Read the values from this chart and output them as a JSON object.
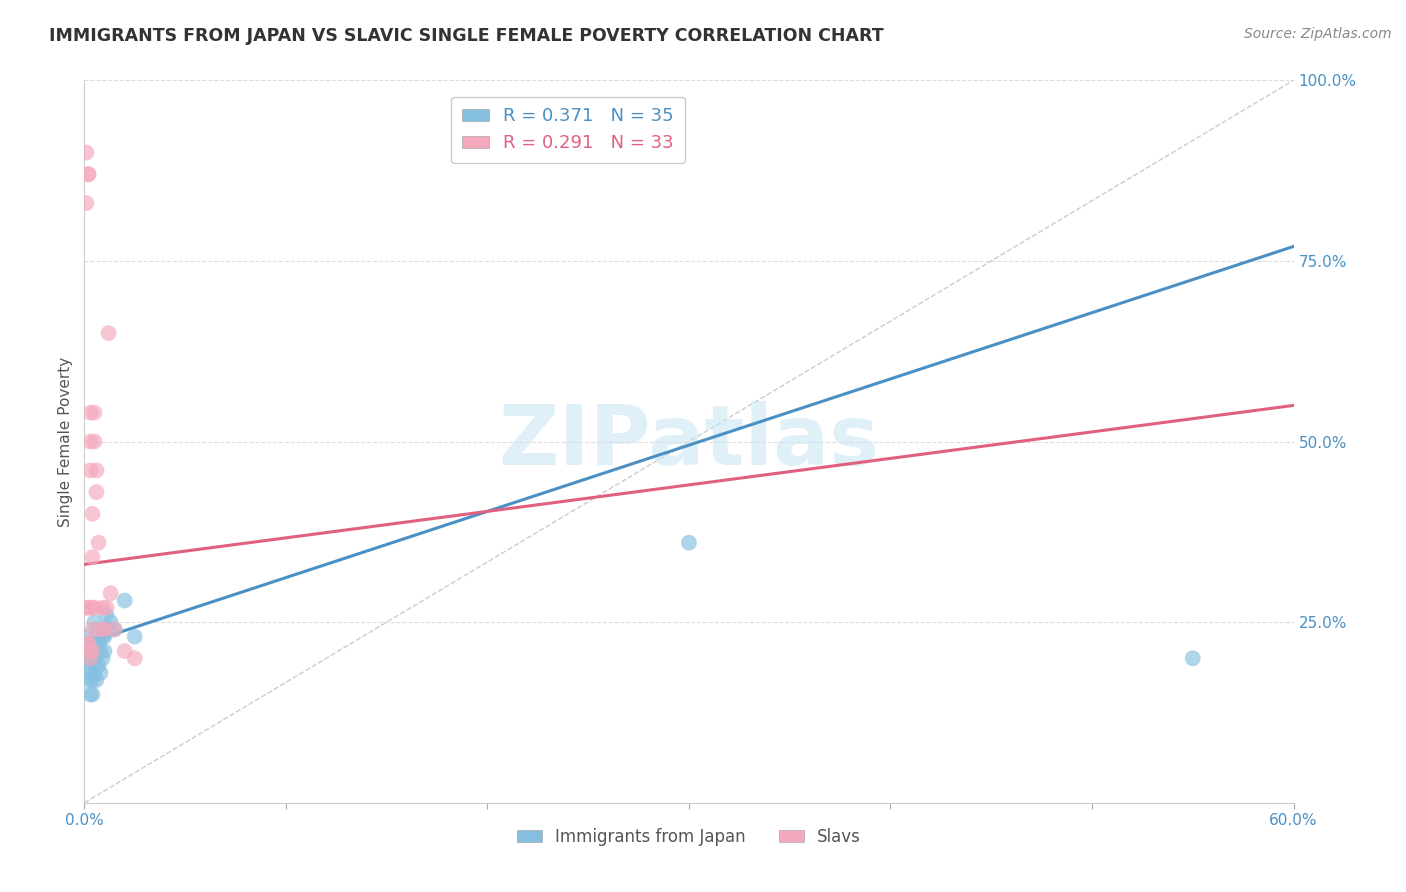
{
  "title": "IMMIGRANTS FROM JAPAN VS SLAVIC SINGLE FEMALE POVERTY CORRELATION CHART",
  "source": "Source: ZipAtlas.com",
  "xlabel_label": "Immigrants from Japan",
  "ylabel_label": "Single Female Poverty",
  "legend_label1": "Immigrants from Japan",
  "legend_label2": "Slavs",
  "R1": 0.371,
  "N1": 35,
  "R2": 0.291,
  "N2": 33,
  "color_blue": "#85bfe0",
  "color_pink": "#f4a8bb",
  "color_blue_line": "#4a90c4",
  "color_pink_line": "#e06080",
  "xlim": [
    0.0,
    0.6
  ],
  "ylim": [
    0.0,
    1.0
  ],
  "xtick_positions": [
    0.0,
    0.1,
    0.2,
    0.3,
    0.4,
    0.5,
    0.6
  ],
  "xtick_labels_show": [
    "0.0%",
    "",
    "",
    "",
    "",
    "",
    "60.0%"
  ],
  "yticks_right": [
    0.25,
    0.5,
    0.75,
    1.0
  ],
  "ytick_labels_right": [
    "25.0%",
    "50.0%",
    "75.0%",
    "100.0%"
  ],
  "watermark": "ZIPatlas",
  "japan_x": [
    0.001,
    0.001,
    0.002,
    0.002,
    0.002,
    0.003,
    0.003,
    0.003,
    0.003,
    0.004,
    0.004,
    0.004,
    0.005,
    0.005,
    0.005,
    0.005,
    0.006,
    0.006,
    0.006,
    0.007,
    0.007,
    0.008,
    0.008,
    0.009,
    0.009,
    0.01,
    0.01,
    0.011,
    0.012,
    0.013,
    0.015,
    0.02,
    0.025,
    0.3,
    0.55
  ],
  "japan_y": [
    0.23,
    0.2,
    0.22,
    0.19,
    0.17,
    0.22,
    0.2,
    0.18,
    0.15,
    0.17,
    0.15,
    0.22,
    0.25,
    0.22,
    0.2,
    0.18,
    0.24,
    0.21,
    0.17,
    0.22,
    0.19,
    0.21,
    0.18,
    0.23,
    0.2,
    0.21,
    0.23,
    0.26,
    0.24,
    0.25,
    0.24,
    0.28,
    0.23,
    0.36,
    0.2
  ],
  "slavs_x": [
    0.001,
    0.001,
    0.001,
    0.002,
    0.002,
    0.002,
    0.002,
    0.003,
    0.003,
    0.003,
    0.004,
    0.004,
    0.004,
    0.005,
    0.005,
    0.006,
    0.006,
    0.007,
    0.008,
    0.009,
    0.01,
    0.011,
    0.012,
    0.013,
    0.015,
    0.02,
    0.025,
    0.002,
    0.003,
    0.004,
    0.005,
    0.004,
    0.003
  ],
  "slavs_y": [
    0.27,
    0.83,
    0.9,
    0.87,
    0.87,
    0.27,
    0.22,
    0.54,
    0.5,
    0.46,
    0.4,
    0.34,
    0.27,
    0.54,
    0.5,
    0.46,
    0.43,
    0.36,
    0.24,
    0.27,
    0.24,
    0.27,
    0.65,
    0.29,
    0.24,
    0.21,
    0.2,
    0.22,
    0.2,
    0.24,
    0.27,
    0.21,
    0.21
  ],
  "blue_line_x": [
    0.0,
    0.6
  ],
  "blue_line_y": [
    0.22,
    0.77
  ],
  "pink_line_x": [
    0.0,
    0.6
  ],
  "pink_line_y": [
    0.33,
    0.55
  ],
  "diag_line_x": [
    0.0,
    0.6
  ],
  "diag_line_y": [
    0.0,
    1.0
  ],
  "dot_size": 130
}
